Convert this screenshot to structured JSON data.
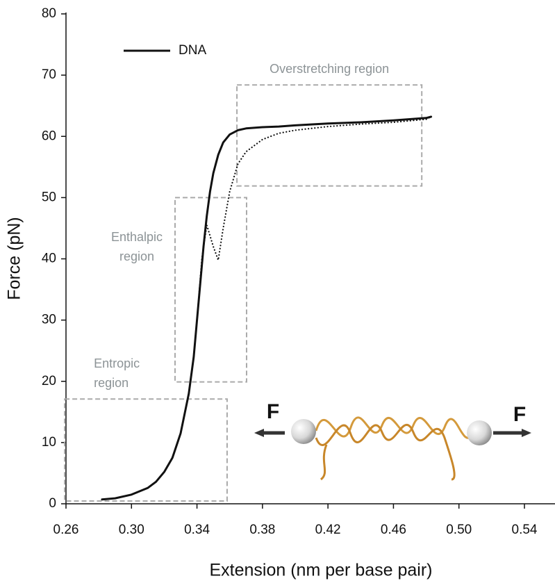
{
  "chart_data": {
    "type": "line",
    "x_label": "Extension (nm per base pair)",
    "y_label": "Force (pN)",
    "xlim": [
      0.26,
      0.56
    ],
    "xticks": [
      0.26,
      {
        "value": 0.3,
        "label": "0.30"
      },
      0.34,
      0.38,
      0.42,
      0.46,
      {
        "value": 0.5,
        "label": "0.50"
      },
      0.54
    ],
    "ylim": [
      0,
      80
    ],
    "yticks": [
      0,
      10,
      20,
      30,
      40,
      50,
      60,
      70,
      80
    ],
    "legend": "upper left",
    "series": [
      {
        "name": "DNA",
        "color": "#111111",
        "style": "solid",
        "x": [
          0.282,
          0.29,
          0.3,
          0.31,
          0.315,
          0.32,
          0.325,
          0.33,
          0.335,
          0.338,
          0.34,
          0.342,
          0.344,
          0.346,
          0.348,
          0.35,
          0.353,
          0.356,
          0.36,
          0.365,
          0.37,
          0.38,
          0.39,
          0.4,
          0.42,
          0.44,
          0.46,
          0.48,
          0.483
        ],
        "values": [
          0.7,
          0.9,
          1.5,
          2.6,
          3.6,
          5.2,
          7.5,
          11.5,
          18,
          24,
          30,
          36,
          42,
          47,
          51,
          54,
          57,
          59,
          60.3,
          61,
          61.3,
          61.5,
          61.6,
          61.8,
          62.1,
          62.3,
          62.6,
          63,
          63.2
        ]
      },
      {
        "color": "#111111",
        "style": "dotted",
        "x": [
          0.34,
          0.343,
          0.346,
          0.35,
          0.353,
          0.356,
          0.36,
          0.365,
          0.37,
          0.38,
          0.39,
          0.4,
          0.42,
          0.44,
          0.46,
          0.48,
          0.483
        ],
        "values": [
          30,
          40,
          45.5,
          42,
          39.8,
          45,
          51,
          55.5,
          57.5,
          59.5,
          60.5,
          61,
          61.6,
          62,
          62.3,
          62.8,
          63.2
        ]
      }
    ],
    "regions": [
      {
        "label": [
          "Overstretching region"
        ],
        "xrange": [
          0.3644,
          0.4773
        ],
        "yrange": [
          51.9,
          68.4
        ]
      },
      {
        "label": [
          "Enthalpic",
          "region"
        ],
        "xrange": [
          0.3266,
          0.3703
        ],
        "yrange": [
          19.9,
          50
        ]
      },
      {
        "label": [
          "Entropic",
          "region"
        ],
        "xrange": [
          0.2592,
          0.3584
        ],
        "yrange": [
          0.45,
          17.1
        ]
      }
    ],
    "force_labels": [
      "F",
      "F"
    ]
  }
}
